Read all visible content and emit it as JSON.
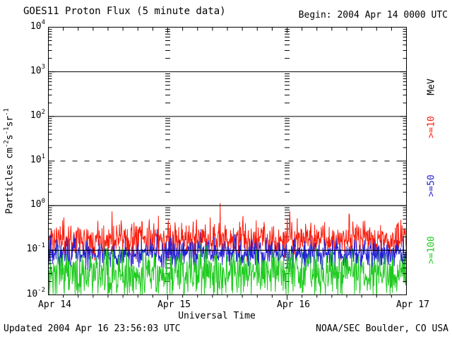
{
  "title": "GOES11 Proton Flux (5 minute data)",
  "begin_label": "Begin: 2004 Apr 14 0000 UTC",
  "footer": {
    "updated": "Updated 2004 Apr 16 23:56:03 UTC",
    "source": "NOAA/SEC Boulder, CO USA"
  },
  "axes": {
    "xlabel": "Universal Time",
    "ylabel_segments": [
      {
        "text": "Particles cm"
      },
      {
        "sup": "-2"
      },
      {
        "text": "s"
      },
      {
        "sup": "-1"
      },
      {
        "text": "sr"
      },
      {
        "sup": "-1"
      }
    ]
  },
  "right_axis_labels": [
    {
      "label": "MeV",
      "color": "#000000"
    },
    {
      "label": ">=10",
      "color": "#fb1d0d"
    },
    {
      "label": ">=50",
      "color": "#2421d6"
    },
    {
      "label": ">=100",
      "color": "#1fca1f"
    }
  ],
  "chart_data": {
    "type": "line",
    "title": "GOES11 Proton Flux (5 minute data)",
    "xlabel": "Universal Time",
    "ylabel": "Particles cm^-2 s^-1 sr^-1",
    "begin_utc": "2004 Apr 14 0000 UTC",
    "updated_utc": "2004 Apr 16 23:56:03 UTC",
    "x_days": 3,
    "x_tick_labels": [
      "Apr 14",
      "Apr 15",
      "Apr 16",
      "Apr 17"
    ],
    "minor_x_ticks_per_day": 8,
    "y_scale": "log",
    "ylim": [
      0.01,
      10000
    ],
    "y_tick_exponents": [
      4,
      3,
      2,
      1,
      0,
      -1,
      -2
    ],
    "gridlines": [
      {
        "value": 1000,
        "style": "solid"
      },
      {
        "value": 100,
        "style": "solid"
      },
      {
        "value": 10,
        "style": "dashed"
      },
      {
        "value": 1,
        "style": "solid"
      },
      {
        "value": 0.1,
        "style": "solid"
      }
    ],
    "minutes_per_sample": 5,
    "samples_per_series": 864,
    "series": [
      {
        "name": ">=10 MeV",
        "color": "#fb1d0d",
        "log10_median": -0.76,
        "log10_spread": 0.2,
        "spike_prob": 0.04,
        "spike_max": 0.55,
        "typical_range": [
          0.09,
          0.45
        ],
        "peak": 0.85,
        "seed": 11
      },
      {
        "name": ">=50 MeV",
        "color": "#2421d6",
        "log10_median": -1.07,
        "log10_spread": 0.16,
        "spike_prob": 0.03,
        "spike_max": 0.35,
        "typical_range": [
          0.045,
          0.16
        ],
        "peak": 0.28,
        "seed": 52
      },
      {
        "name": ">=100 MeV",
        "color": "#1fca1f",
        "log10_median": -1.52,
        "log10_spread": 0.26,
        "spike_prob": 0.03,
        "spike_max": 0.45,
        "typical_range": [
          0.01,
          0.09
        ],
        "peak": 0.13,
        "seed": 103
      }
    ]
  }
}
